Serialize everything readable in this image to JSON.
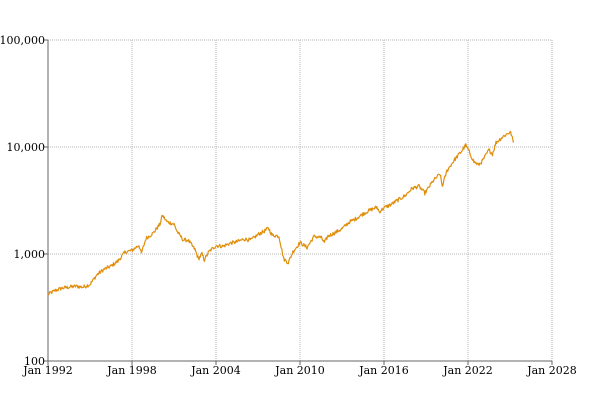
{
  "chart_data": {
    "type": "line",
    "title": "",
    "xlabel": "",
    "ylabel": "",
    "scale": {
      "x": "time",
      "y": "log"
    },
    "grid": true,
    "legend": "none",
    "xlim": [
      "1992-01-01",
      "2028-01-01"
    ],
    "ylim": [
      100,
      100000
    ],
    "x_ticks": [
      {
        "date": "1992-01-01",
        "label": "Jan 1992"
      },
      {
        "date": "1998-01-01",
        "label": "Jan 1998"
      },
      {
        "date": "2004-01-01",
        "label": "Jan 2004"
      },
      {
        "date": "2010-01-01",
        "label": "Jan 2010"
      },
      {
        "date": "2016-01-01",
        "label": "Jan 2016"
      },
      {
        "date": "2022-01-01",
        "label": "Jan 2022"
      },
      {
        "date": "2028-01-01",
        "label": "Jan 2028"
      }
    ],
    "y_ticks": [
      {
        "value": 100,
        "label": "100"
      },
      {
        "value": 1000,
        "label": "1,000"
      },
      {
        "value": 10000,
        "label": "10,000"
      },
      {
        "value": 100000,
        "label": "100,000"
      }
    ],
    "colors": {
      "line": "#e08e0b",
      "grid": "#b5b5b5",
      "axis": "#666666"
    },
    "series": [
      {
        "points": [
          [
            "1992-01-01",
            420
          ],
          [
            "1992-07-01",
            455
          ],
          [
            "1993-01-01",
            480
          ],
          [
            "1993-07-01",
            490
          ],
          [
            "1994-01-01",
            500
          ],
          [
            "1994-07-01",
            490
          ],
          [
            "1995-01-01",
            520
          ],
          [
            "1995-07-01",
            640
          ],
          [
            "1996-01-01",
            720
          ],
          [
            "1996-07-01",
            770
          ],
          [
            "1997-01-01",
            860
          ],
          [
            "1997-07-01",
            1040
          ],
          [
            "1998-01-01",
            1080
          ],
          [
            "1998-07-01",
            1210
          ],
          [
            "1998-09-01",
            1010
          ],
          [
            "1999-01-01",
            1400
          ],
          [
            "1999-07-01",
            1560
          ],
          [
            "2000-01-01",
            1900
          ],
          [
            "2000-03-01",
            2300
          ],
          [
            "2000-07-01",
            2000
          ],
          [
            "2001-01-01",
            1900
          ],
          [
            "2001-04-01",
            1600
          ],
          [
            "2001-09-01",
            1350
          ],
          [
            "2002-01-01",
            1350
          ],
          [
            "2002-07-01",
            1100
          ],
          [
            "2002-10-01",
            900
          ],
          [
            "2003-01-01",
            1000
          ],
          [
            "2003-03-01",
            880
          ],
          [
            "2003-07-01",
            1050
          ],
          [
            "2004-01-01",
            1200
          ],
          [
            "2004-07-01",
            1180
          ],
          [
            "2005-01-01",
            1260
          ],
          [
            "2005-07-01",
            1300
          ],
          [
            "2006-01-01",
            1380
          ],
          [
            "2006-07-01",
            1350
          ],
          [
            "2007-01-01",
            1520
          ],
          [
            "2007-07-01",
            1650
          ],
          [
            "2007-10-01",
            1750
          ],
          [
            "2008-01-01",
            1500
          ],
          [
            "2008-07-01",
            1470
          ],
          [
            "2008-11-01",
            900
          ],
          [
            "2009-03-01",
            830
          ],
          [
            "2009-07-01",
            1050
          ],
          [
            "2010-01-01",
            1280
          ],
          [
            "2010-07-01",
            1150
          ],
          [
            "2011-01-01",
            1460
          ],
          [
            "2011-07-01",
            1430
          ],
          [
            "2011-10-01",
            1280
          ],
          [
            "2012-01-01",
            1470
          ],
          [
            "2012-07-01",
            1580
          ],
          [
            "2013-01-01",
            1720
          ],
          [
            "2013-07-01",
            1980
          ],
          [
            "2014-01-01",
            2140
          ],
          [
            "2014-07-01",
            2370
          ],
          [
            "2015-01-01",
            2570
          ],
          [
            "2015-07-01",
            2740
          ],
          [
            "2015-09-01",
            2480
          ],
          [
            "2016-01-01",
            2700
          ],
          [
            "2016-07-01",
            2900
          ],
          [
            "2017-01-01",
            3200
          ],
          [
            "2017-07-01",
            3500
          ],
          [
            "2018-01-01",
            4100
          ],
          [
            "2018-07-01",
            4300
          ],
          [
            "2018-12-01",
            3700
          ],
          [
            "2019-07-01",
            4800
          ],
          [
            "2020-01-01",
            5600
          ],
          [
            "2020-03-01",
            4300
          ],
          [
            "2020-07-01",
            6000
          ],
          [
            "2021-01-01",
            7500
          ],
          [
            "2021-07-01",
            9000
          ],
          [
            "2021-11-01",
            10400
          ],
          [
            "2022-01-01",
            9500
          ],
          [
            "2022-06-01",
            7300
          ],
          [
            "2022-10-01",
            6800
          ],
          [
            "2023-01-01",
            7300
          ],
          [
            "2023-07-01",
            9400
          ],
          [
            "2023-10-01",
            8600
          ],
          [
            "2024-01-01",
            11000
          ],
          [
            "2024-07-01",
            12500
          ],
          [
            "2025-01-01",
            13800
          ],
          [
            "2025-02-01",
            13200
          ],
          [
            "2025-04-01",
            11000
          ]
        ]
      }
    ]
  }
}
